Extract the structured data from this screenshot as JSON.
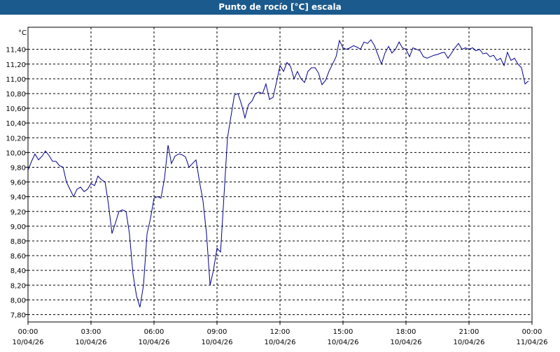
{
  "chart_data": {
    "type": "line",
    "title": "Punto de rocío [°C] escala",
    "unit_label": "°C",
    "ylim": [
      7.7,
      11.7
    ],
    "y_ticks": [
      "7,80",
      "8,00",
      "8,20",
      "8,40",
      "8,60",
      "8,80",
      "9,00",
      "9,20",
      "9,40",
      "9,60",
      "9,80",
      "10,00",
      "10,20",
      "10,40",
      "10,60",
      "10,80",
      "11,00",
      "11,20",
      "11,40"
    ],
    "y_tick_values": [
      7.8,
      8.0,
      8.2,
      8.4,
      8.6,
      8.8,
      9.0,
      9.2,
      9.4,
      9.6,
      9.8,
      10.0,
      10.2,
      10.4,
      10.6,
      10.8,
      11.0,
      11.2,
      11.4
    ],
    "x_ticks": [
      {
        "time": "00:00",
        "date": "10/04/26",
        "hour": 0
      },
      {
        "time": "03:00",
        "date": "10/04/26",
        "hour": 3
      },
      {
        "time": "06:00",
        "date": "10/04/26",
        "hour": 6
      },
      {
        "time": "09:00",
        "date": "10/04/26",
        "hour": 9
      },
      {
        "time": "12:00",
        "date": "10/04/26",
        "hour": 12
      },
      {
        "time": "15:00",
        "date": "10/04/26",
        "hour": 15
      },
      {
        "time": "18:00",
        "date": "10/04/26",
        "hour": 18
      },
      {
        "time": "21:00",
        "date": "10/04/26",
        "hour": 21
      },
      {
        "time": "00:00",
        "date": "11/04/26",
        "hour": 24
      }
    ],
    "xlim": [
      0,
      24
    ],
    "grid": true,
    "colors": {
      "line": "#00008b",
      "title_bg": "#1b5a8c",
      "grid": "#000000"
    },
    "series": [
      {
        "points": [
          [
            0.0,
            9.76
          ],
          [
            0.17,
            9.88
          ],
          [
            0.33,
            9.98
          ],
          [
            0.5,
            9.9
          ],
          [
            0.67,
            9.95
          ],
          [
            0.83,
            10.02
          ],
          [
            1.0,
            9.96
          ],
          [
            1.17,
            9.88
          ],
          [
            1.33,
            9.88
          ],
          [
            1.5,
            9.82
          ],
          [
            1.67,
            9.8
          ],
          [
            1.83,
            9.6
          ],
          [
            2.0,
            9.5
          ],
          [
            2.17,
            9.4
          ],
          [
            2.33,
            9.5
          ],
          [
            2.5,
            9.53
          ],
          [
            2.67,
            9.47
          ],
          [
            2.83,
            9.5
          ],
          [
            3.0,
            9.58
          ],
          [
            3.17,
            9.55
          ],
          [
            3.33,
            9.68
          ],
          [
            3.5,
            9.63
          ],
          [
            3.67,
            9.6
          ],
          [
            3.83,
            9.3
          ],
          [
            4.0,
            8.9
          ],
          [
            4.17,
            9.05
          ],
          [
            4.33,
            9.2
          ],
          [
            4.5,
            9.22
          ],
          [
            4.67,
            9.2
          ],
          [
            4.83,
            8.9
          ],
          [
            5.0,
            8.35
          ],
          [
            5.17,
            8.05
          ],
          [
            5.33,
            7.9
          ],
          [
            5.5,
            8.2
          ],
          [
            5.67,
            8.9
          ],
          [
            5.83,
            9.1
          ],
          [
            6.0,
            9.38
          ],
          [
            6.17,
            9.4
          ],
          [
            6.33,
            9.38
          ],
          [
            6.5,
            9.65
          ],
          [
            6.67,
            10.1
          ],
          [
            6.83,
            9.85
          ],
          [
            7.0,
            9.95
          ],
          [
            7.17,
            9.98
          ],
          [
            7.33,
            9.97
          ],
          [
            7.5,
            9.94
          ],
          [
            7.67,
            9.8
          ],
          [
            7.83,
            9.85
          ],
          [
            8.0,
            9.9
          ],
          [
            8.17,
            9.6
          ],
          [
            8.33,
            9.35
          ],
          [
            8.5,
            8.9
          ],
          [
            8.67,
            8.2
          ],
          [
            8.83,
            8.4
          ],
          [
            9.0,
            8.7
          ],
          [
            9.17,
            8.65
          ],
          [
            9.33,
            9.4
          ],
          [
            9.5,
            10.2
          ],
          [
            9.67,
            10.5
          ],
          [
            9.83,
            10.78
          ],
          [
            10.0,
            10.8
          ],
          [
            10.17,
            10.65
          ],
          [
            10.33,
            10.47
          ],
          [
            10.5,
            10.65
          ],
          [
            10.67,
            10.7
          ],
          [
            10.83,
            10.8
          ],
          [
            11.0,
            10.82
          ],
          [
            11.17,
            10.8
          ],
          [
            11.33,
            10.93
          ],
          [
            11.5,
            10.72
          ],
          [
            11.67,
            10.75
          ],
          [
            11.83,
            10.95
          ],
          [
            12.0,
            11.18
          ],
          [
            12.17,
            11.1
          ],
          [
            12.33,
            11.22
          ],
          [
            12.5,
            11.17
          ],
          [
            12.67,
            11.0
          ],
          [
            12.83,
            11.1
          ],
          [
            13.0,
            11.0
          ],
          [
            13.17,
            10.95
          ],
          [
            13.33,
            11.1
          ],
          [
            13.5,
            11.15
          ],
          [
            13.67,
            11.15
          ],
          [
            13.83,
            11.08
          ],
          [
            14.0,
            10.92
          ],
          [
            14.17,
            10.98
          ],
          [
            14.33,
            11.1
          ],
          [
            14.5,
            11.2
          ],
          [
            14.67,
            11.3
          ],
          [
            14.83,
            11.52
          ],
          [
            15.0,
            11.42
          ],
          [
            15.17,
            11.4
          ],
          [
            15.33,
            11.42
          ],
          [
            15.5,
            11.45
          ],
          [
            15.67,
            11.43
          ],
          [
            15.83,
            11.4
          ],
          [
            16.0,
            11.5
          ],
          [
            16.17,
            11.48
          ],
          [
            16.33,
            11.53
          ],
          [
            16.5,
            11.45
          ],
          [
            16.67,
            11.32
          ],
          [
            16.83,
            11.2
          ],
          [
            17.0,
            11.35
          ],
          [
            17.17,
            11.44
          ],
          [
            17.33,
            11.35
          ],
          [
            17.5,
            11.4
          ],
          [
            17.67,
            11.5
          ],
          [
            17.83,
            11.42
          ],
          [
            18.0,
            11.4
          ],
          [
            18.17,
            11.3
          ],
          [
            18.33,
            11.42
          ],
          [
            18.5,
            11.4
          ],
          [
            18.67,
            11.38
          ],
          [
            18.83,
            11.3
          ],
          [
            19.0,
            11.28
          ],
          [
            19.17,
            11.3
          ],
          [
            19.33,
            11.32
          ],
          [
            19.5,
            11.33
          ],
          [
            19.67,
            11.35
          ],
          [
            19.83,
            11.36
          ],
          [
            20.0,
            11.28
          ],
          [
            20.17,
            11.35
          ],
          [
            20.33,
            11.42
          ],
          [
            20.5,
            11.48
          ],
          [
            20.67,
            11.4
          ],
          [
            20.83,
            11.42
          ],
          [
            21.0,
            11.4
          ],
          [
            21.17,
            11.42
          ],
          [
            21.33,
            11.38
          ],
          [
            21.5,
            11.4
          ],
          [
            21.67,
            11.34
          ],
          [
            21.83,
            11.35
          ],
          [
            22.0,
            11.3
          ],
          [
            22.17,
            11.32
          ],
          [
            22.33,
            11.25
          ],
          [
            22.5,
            11.28
          ],
          [
            22.67,
            11.18
          ],
          [
            22.83,
            11.36
          ],
          [
            23.0,
            11.25
          ],
          [
            23.17,
            11.28
          ],
          [
            23.33,
            11.2
          ],
          [
            23.5,
            11.15
          ],
          [
            23.67,
            10.93
          ],
          [
            23.83,
            10.97
          ]
        ]
      }
    ]
  }
}
